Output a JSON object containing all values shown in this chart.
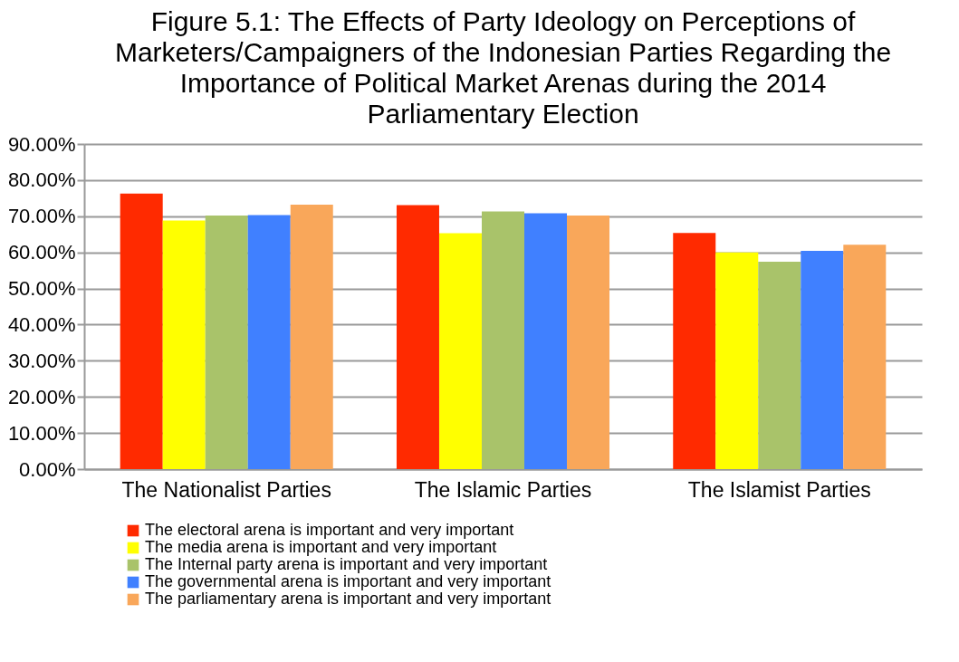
{
  "chart_data": {
    "type": "bar",
    "title": "Figure 5.1: The Effects of Party Ideology on Perceptions of Marketers/Campaigners of the Indonesian Parties Regarding the Importance of Political Market Arenas during the 2014 Parliamentary Election",
    "categories": [
      "The Nationalist Parties",
      "The Islamic Parties",
      "The Islamist Parties"
    ],
    "series": [
      {
        "name": "The electoral arena is important and very important",
        "color": "#ff2a00",
        "values": [
          76.3,
          73.1,
          65.4
        ]
      },
      {
        "name": "The media arena is important and very important",
        "color": "#ffff00",
        "values": [
          68.8,
          65.3,
          60.0
        ]
      },
      {
        "name": "The Internal party arena is important and very important",
        "color": "#a9c36a",
        "values": [
          70.2,
          71.3,
          57.4
        ]
      },
      {
        "name": "The governmental arena is important and very important",
        "color": "#4080ff",
        "values": [
          70.3,
          70.8,
          60.4
        ]
      },
      {
        "name": "The parliamentary arena is important and very important",
        "color": "#f9a75a",
        "values": [
          73.2,
          70.2,
          62.1
        ]
      }
    ],
    "ylim": [
      0,
      90
    ],
    "yticks": [
      {
        "value": 0,
        "label": "0.00%"
      },
      {
        "value": 10,
        "label": "10.00%"
      },
      {
        "value": 20,
        "label": "20.00%"
      },
      {
        "value": 30,
        "label": "30.00%"
      },
      {
        "value": 40,
        "label": "40.00%"
      },
      {
        "value": 50,
        "label": "50.00%"
      },
      {
        "value": 60,
        "label": "60.00%"
      },
      {
        "value": 70,
        "label": "70.00%"
      },
      {
        "value": 80,
        "label": "80.00%"
      },
      {
        "value": 90,
        "label": "90.00%"
      }
    ],
    "grid": "y",
    "legend": "bottom left"
  }
}
